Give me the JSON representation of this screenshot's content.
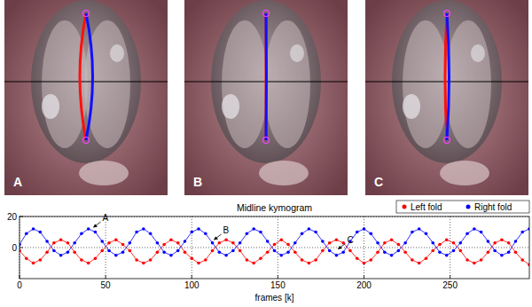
{
  "panels": {
    "labels": [
      "A",
      "B",
      "C"
    ]
  },
  "chart_data": {
    "type": "line",
    "title": "Midline kymogram",
    "x_label": "frames [k]",
    "x": [
      0,
      4,
      8,
      12,
      16,
      20,
      24,
      28,
      32,
      36,
      40,
      44,
      48,
      52,
      56,
      60,
      64,
      68,
      72,
      76,
      80,
      84,
      88,
      92,
      96,
      100,
      104,
      108,
      112,
      116,
      120,
      124,
      128,
      132,
      136,
      140,
      144,
      148,
      152,
      156,
      160,
      164,
      168,
      172,
      176,
      180,
      184,
      188,
      192,
      196,
      200,
      204,
      208,
      212,
      216,
      220,
      224,
      228,
      232,
      236,
      240,
      244,
      248,
      252,
      256,
      260,
      264,
      268,
      272,
      276,
      280,
      284,
      288,
      292,
      296
    ],
    "series": [
      {
        "name": "Left fold",
        "color": "#ff0000",
        "marker": "dot",
        "line_style": "solid",
        "values": [
          -2,
          -7,
          -10,
          -8,
          -3,
          3,
          5,
          3,
          -3,
          -8,
          -10,
          -7,
          -2,
          3,
          5,
          2,
          -2,
          -8,
          -10,
          -8,
          -3,
          2,
          5,
          3,
          -3,
          -7,
          -10,
          -8,
          -2,
          3,
          5,
          3,
          -2,
          -8,
          -10,
          -7,
          -3,
          2,
          5,
          2,
          -3,
          -8,
          -10,
          -8,
          -2,
          3,
          5,
          3,
          -2,
          -7,
          -10,
          -8,
          -3,
          3,
          5,
          2,
          -3,
          -8,
          -10,
          -7,
          -2,
          2,
          5,
          3,
          -2,
          -8,
          -10,
          -8,
          -3,
          3,
          5,
          3,
          -3,
          -8,
          -11
        ]
      },
      {
        "name": "Right fold",
        "color": "#0000ff",
        "marker": "dot",
        "line_style": "solid",
        "values": [
          2,
          9,
          12,
          10,
          4,
          -2,
          -5,
          -3,
          3,
          9,
          12,
          10,
          4,
          -2,
          -5,
          -3,
          3,
          10,
          12,
          9,
          3,
          -3,
          -5,
          -2,
          4,
          10,
          12,
          9,
          3,
          -3,
          -5,
          -2,
          3,
          9,
          12,
          10,
          4,
          -2,
          -5,
          -3,
          3,
          9,
          12,
          10,
          4,
          -2,
          -5,
          -3,
          4,
          10,
          12,
          9,
          3,
          -3,
          -5,
          -2,
          3,
          10,
          12,
          9,
          3,
          -3,
          -5,
          -2,
          3,
          9,
          12,
          10,
          4,
          -2,
          -5,
          -3,
          4,
          10,
          12
        ]
      }
    ],
    "xlim": [
      0,
      296
    ],
    "xticks": [
      0,
      50,
      100,
      150,
      200,
      250
    ],
    "ylim": [
      -20,
      20
    ],
    "yticks": [
      0,
      20
    ],
    "grid": true,
    "legend": "upper right",
    "annotations": [
      {
        "text": "A",
        "x": 42,
        "y": 12
      },
      {
        "text": "B",
        "x": 112,
        "y": 4
      },
      {
        "text": "C",
        "x": 184,
        "y": -2
      }
    ]
  }
}
